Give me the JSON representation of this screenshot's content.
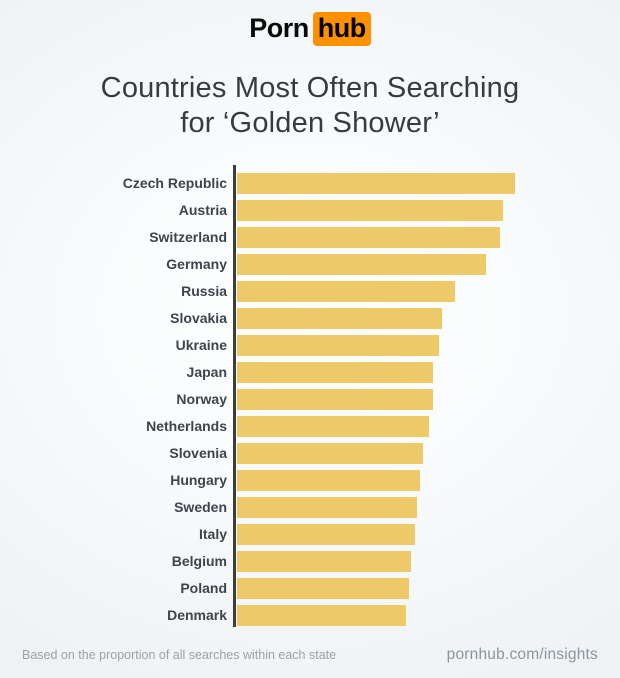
{
  "header": {
    "logo_porn": "Porn",
    "logo_hub": "hub",
    "logo_accent_color": "#ff9000",
    "title_line1": "Countries Most Often Searching",
    "title_line2": "for ‘Golden Shower’"
  },
  "chart_data": {
    "type": "bar",
    "orientation": "horizontal",
    "title": "Countries Most Often Searching for ‘Golden Shower’",
    "categories": [
      "Czech Republic",
      "Austria",
      "Switzerland",
      "Germany",
      "Russia",
      "Slovakia",
      "Ukraine",
      "Japan",
      "Norway",
      "Netherlands",
      "Slovenia",
      "Hungary",
      "Sweden",
      "Italy",
      "Belgium",
      "Poland",
      "Denmark"
    ],
    "values": [
      100,
      95.7,
      94.6,
      89.6,
      78.4,
      73.7,
      72.7,
      70.5,
      70.5,
      69.1,
      66.9,
      65.8,
      64.7,
      64.0,
      62.6,
      61.9,
      60.8
    ],
    "units": "relative bar length (longest bar = 100)",
    "xlim": [
      0,
      100
    ],
    "bar_color": "#edc967",
    "axis_color": "#3d3d3d",
    "grid": false,
    "legend": false,
    "value_labels": false
  },
  "footer": {
    "note": "Based on the proportion of all searches within each state",
    "site": "pornhub.com/insights"
  }
}
